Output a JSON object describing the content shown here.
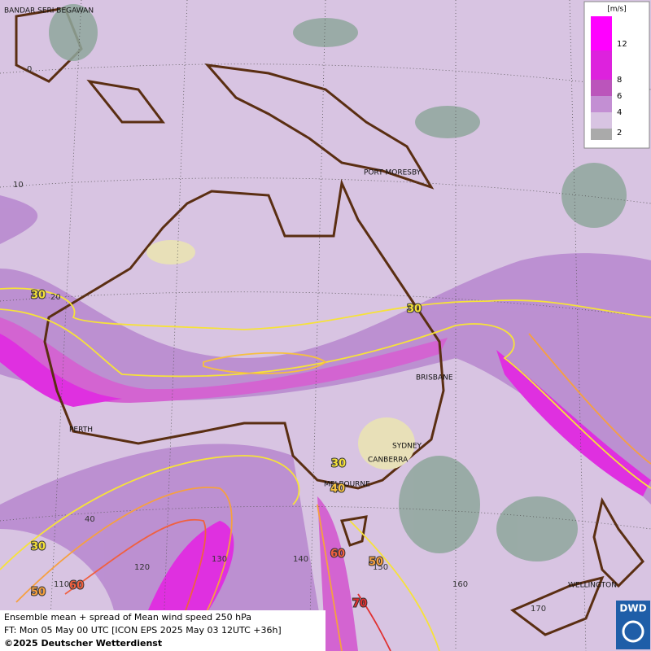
{
  "legend": {
    "unit": "[m/s]",
    "ticks": [
      12,
      8,
      6,
      4,
      2
    ]
  },
  "cities": [
    "BANDAR SERI BEGAWAN",
    "PORT MORESBY",
    "BRISBANE",
    "PERTH",
    "SYDNEY",
    "CANBERRA",
    "MELBOURNE",
    "WELLINGTON"
  ],
  "grid_labels": [
    "0",
    "10",
    "20",
    "40",
    "110",
    "120",
    "130",
    "140",
    "150",
    "160",
    "170"
  ],
  "contour_labels": [
    "30",
    "30",
    "30",
    "30",
    "40",
    "50",
    "60",
    "60",
    "50",
    "70"
  ],
  "footer": {
    "line1": "Ensemble mean + spread of Mean wind speed 250 hPa",
    "line2": "FT: Mon 05 May 00 UTC [ICON EPS 2025 May 03 12UTC +36h]",
    "line3": "©2025 Deutscher Wetterdienst"
  },
  "logo": "DWD"
}
